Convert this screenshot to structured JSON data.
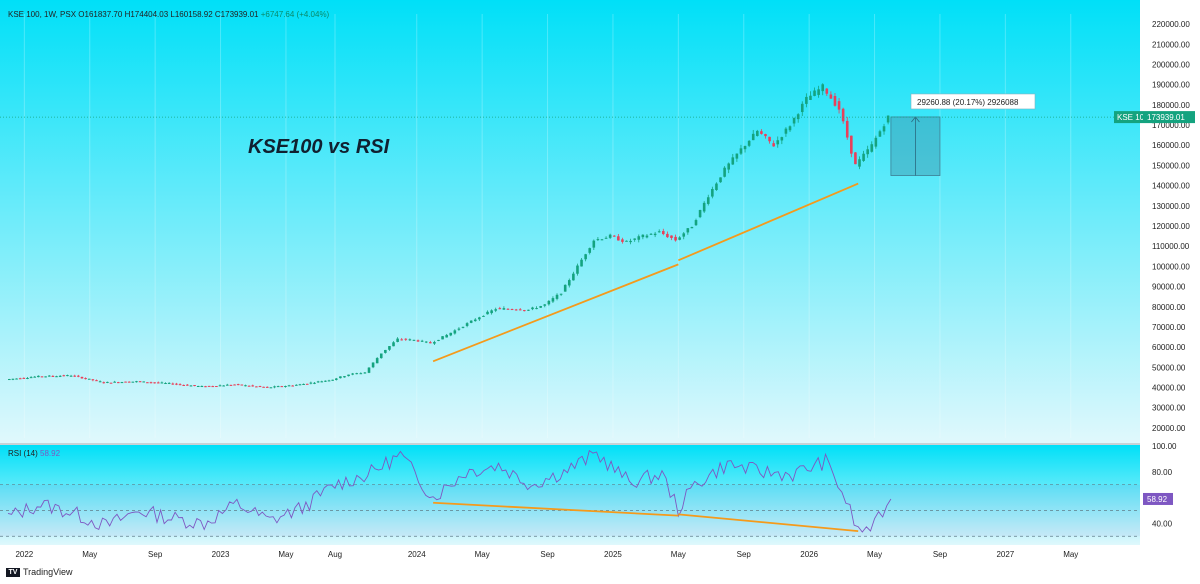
{
  "header": {
    "symbol_line": "KSE 100, 1W, PSX",
    "open": "O161837.70",
    "high": "H174404.03",
    "low": "L160158.92",
    "close": "C173939.01",
    "change": "+6747.64 (+4.04%)"
  },
  "annotation_title": "KSE100 vs RSI",
  "footer": {
    "brand": "TradingView",
    "logo": "tv-logo-icon"
  },
  "colors": {
    "background_top": "#00e0f8",
    "background_bottom": "#e0f8fc",
    "bull": "#14a37f",
    "bear": "#e8405a",
    "trendline": "#f59a1b",
    "rsi_line": "#7e57c2",
    "measure_box": "#3f93a8"
  },
  "chart_data": [
    {
      "type": "candlestick",
      "name": "KSE 100",
      "ylim": [
        15000,
        225000
      ],
      "y_ticks": [
        20000,
        30000,
        40000,
        50000,
        60000,
        70000,
        80000,
        90000,
        100000,
        110000,
        120000,
        130000,
        140000,
        150000,
        160000,
        170000,
        180000,
        190000,
        200000,
        210000,
        220000
      ],
      "y_tick_labels": [
        "20000.00",
        "30000.00",
        "40000.00",
        "50000.00",
        "60000.00",
        "70000.00",
        "80000.00",
        "90000.00",
        "100000.00",
        "110000.00",
        "120000.00",
        "130000.00",
        "140000.00",
        "150000.00",
        "160000.00",
        "170000.00",
        "180000.00",
        "190000.00",
        "200000.00",
        "210000.00",
        "220000.00"
      ],
      "x_labels": [
        "2022",
        "May",
        "Sep",
        "2023",
        "May",
        "Aug",
        "2024",
        "May",
        "Sep",
        "2025",
        "May",
        "Sep",
        "2026",
        "May",
        "Sep",
        "2027",
        "May"
      ],
      "x_label_positions": [
        "2022-01",
        "2022-05",
        "2022-09",
        "2023-01",
        "2023-05",
        "2023-08",
        "2024-01",
        "2024-05",
        "2024-09",
        "2025-01",
        "2025-05",
        "2025-09",
        "2026-01",
        "2026-05",
        "2026-09",
        "2027-01",
        "2027-05"
      ],
      "last_price_label": "KSE 100",
      "last_price": "173939.01",
      "price_path": [
        [
          "2021-12",
          44000
        ],
        [
          "2022-02",
          45500
        ],
        [
          "2022-04",
          46000
        ],
        [
          "2022-06",
          42500
        ],
        [
          "2022-08",
          43000
        ],
        [
          "2022-10",
          42000
        ],
        [
          "2022-12",
          40500
        ],
        [
          "2023-02",
          41500
        ],
        [
          "2023-04",
          40000
        ],
        [
          "2023-06",
          41500
        ],
        [
          "2023-08",
          44000
        ],
        [
          "2023-09",
          46500
        ],
        [
          "2023-10",
          47500
        ],
        [
          "2023-11",
          57000
        ],
        [
          "2023-12",
          64000
        ],
        [
          "2024-01",
          63500
        ],
        [
          "2024-02",
          62000
        ],
        [
          "2024-03",
          66000
        ],
        [
          "2024-04",
          70500
        ],
        [
          "2024-05",
          75000
        ],
        [
          "2024-06",
          79000
        ],
        [
          "2024-07",
          79000
        ],
        [
          "2024-08",
          78500
        ],
        [
          "2024-09",
          81000
        ],
        [
          "2024-10",
          87000
        ],
        [
          "2024-11",
          100000
        ],
        [
          "2024-12",
          113000
        ],
        [
          "2025-01",
          115000
        ],
        [
          "2025-02",
          112000
        ],
        [
          "2025-03",
          115000
        ],
        [
          "2025-04",
          117000
        ],
        [
          "2025-05",
          113000
        ],
        [
          "2025-06",
          120000
        ],
        [
          "2025-07",
          135000
        ],
        [
          "2025-08",
          148000
        ],
        [
          "2025-09",
          158000
        ],
        [
          "2025-10",
          167000
        ],
        [
          "2025-11",
          160000
        ],
        [
          "2025-12",
          170000
        ],
        [
          "2026-01",
          183000
        ],
        [
          "2026-02",
          189000
        ],
        [
          "2026-03",
          178000
        ],
        [
          "2026-04",
          150000
        ],
        [
          "2026-05",
          160000
        ],
        [
          "2026-06",
          174000
        ]
      ],
      "trendlines": [
        {
          "from": [
            "2024-02",
            53000
          ],
          "to": [
            "2025-05",
            101000
          ]
        },
        {
          "from": [
            "2025-05",
            103000
          ],
          "to": [
            "2026-04",
            141000
          ]
        }
      ],
      "measure": {
        "label": "29260.88 (20.17%) 2926088",
        "from_date": "2026-06",
        "to_date": "2026-09",
        "low": 145000,
        "high": 174000
      }
    },
    {
      "type": "line",
      "name": "RSI (14)",
      "value_label": "58.92",
      "ylim": [
        24,
        100
      ],
      "y_ticks": [
        40,
        80,
        100
      ],
      "y_tick_labels": [
        "40.00",
        "80.00",
        "100.00"
      ],
      "bands": [
        30,
        50,
        70
      ],
      "rsi_path": [
        [
          "2021-12",
          45
        ],
        [
          "2022-02",
          55
        ],
        [
          "2022-04",
          48
        ],
        [
          "2022-06",
          38
        ],
        [
          "2022-08",
          50
        ],
        [
          "2022-10",
          44
        ],
        [
          "2022-12",
          40
        ],
        [
          "2023-02",
          55
        ],
        [
          "2023-04",
          42
        ],
        [
          "2023-06",
          52
        ],
        [
          "2023-08",
          70
        ],
        [
          "2023-10",
          78
        ],
        [
          "2023-12",
          93
        ],
        [
          "2024-02",
          60
        ],
        [
          "2024-04",
          80
        ],
        [
          "2024-06",
          85
        ],
        [
          "2024-08",
          70
        ],
        [
          "2024-10",
          80
        ],
        [
          "2024-12",
          94
        ],
        [
          "2025-02",
          72
        ],
        [
          "2025-04",
          78
        ],
        [
          "2025-05",
          51
        ],
        [
          "2025-06",
          70
        ],
        [
          "2025-08",
          86
        ],
        [
          "2025-10",
          80
        ],
        [
          "2025-12",
          78
        ],
        [
          "2026-02",
          88
        ],
        [
          "2026-03",
          65
        ],
        [
          "2026-04",
          34
        ],
        [
          "2026-05",
          38
        ],
        [
          "2026-06",
          58.92
        ]
      ],
      "trendlines": [
        {
          "from": [
            "2024-02",
            56
          ],
          "to": [
            "2025-05",
            46
          ]
        },
        {
          "from": [
            "2025-05",
            47
          ],
          "to": [
            "2026-04",
            34
          ]
        }
      ]
    }
  ]
}
